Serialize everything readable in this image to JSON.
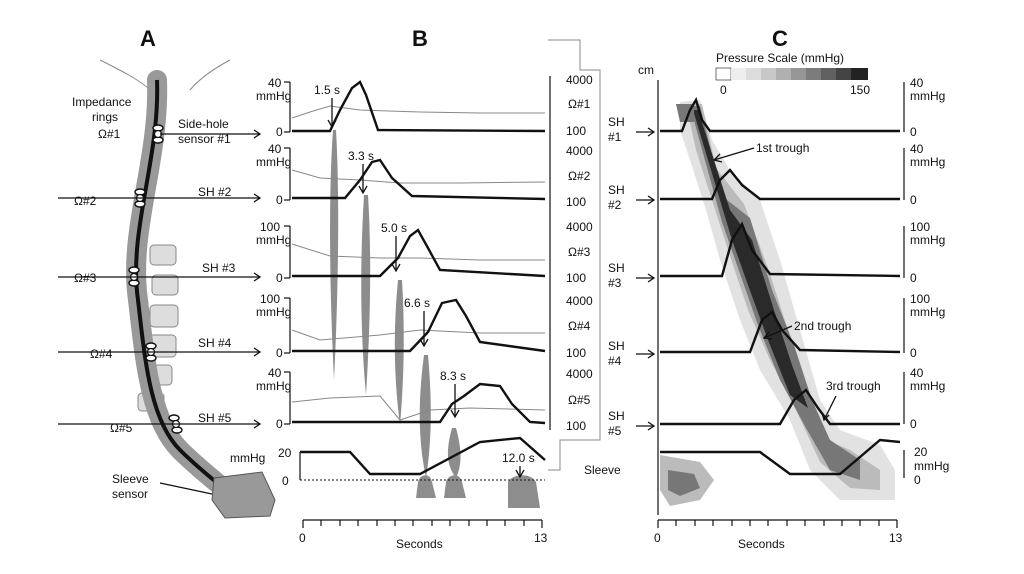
{
  "panels": {
    "a": "A",
    "b": "B",
    "c": "C"
  },
  "panel_a": {
    "impedance_rings": "Impedance\nrings",
    "side_hole_sensor": "Side-hole\nsensor #1",
    "sensors": [
      "Ω#1",
      "Ω#2",
      "Ω#3",
      "Ω#4",
      "Ω#5"
    ],
    "side_holes": [
      "SH #2",
      "SH #3",
      "SH #4",
      "SH #5"
    ],
    "sleeve_sensor": "Sleeve\nsensor"
  },
  "panel_b": {
    "unit": "mmHg",
    "pressure_ticks": [
      [
        "40",
        "0"
      ],
      [
        "40",
        "0"
      ],
      [
        "100",
        "0"
      ],
      [
        "100",
        "0"
      ],
      [
        "40",
        "0"
      ]
    ],
    "sleeve_ticks": [
      "20",
      "0"
    ],
    "times": [
      "1.5 s",
      "3.3 s",
      "5.0 s",
      "6.6 s",
      "8.3 s",
      "12.0 s"
    ],
    "impedance_labels": [
      "Ω#1",
      "Ω#2",
      "Ω#3",
      "Ω#4",
      "Ω#5"
    ],
    "impedance_ticks": [
      "4000",
      "100"
    ],
    "x_label": "Seconds",
    "x_ticks": [
      "0",
      "13"
    ]
  },
  "panel_c": {
    "title": "Pressure Scale (mmHg)",
    "scale_min": "0",
    "scale_max": "150",
    "cm_label": "cm",
    "sh_labels": [
      [
        "SH",
        "#1"
      ],
      [
        "SH",
        "#2"
      ],
      [
        "SH",
        "#3"
      ],
      [
        "SH",
        "#4"
      ],
      [
        "SH",
        "#5"
      ]
    ],
    "sleeve_label": "Sleeve",
    "right_ticks": [
      [
        "40",
        "0"
      ],
      [
        "40",
        "0"
      ],
      [
        "100",
        "0"
      ],
      [
        "100",
        "0"
      ],
      [
        "40",
        "0"
      ]
    ],
    "sleeve_ticks": [
      "20",
      "0"
    ],
    "unit": "mmHg",
    "troughs": [
      "1st trough",
      "2nd trough",
      "3rd trough"
    ],
    "x_label": "Seconds",
    "x_ticks": [
      "0",
      "13"
    ],
    "colors": {
      "dark": "#2a2a2a",
      "mid": "#777777",
      "light": "#bbbbbb",
      "pale": "#e2e2e2"
    }
  }
}
